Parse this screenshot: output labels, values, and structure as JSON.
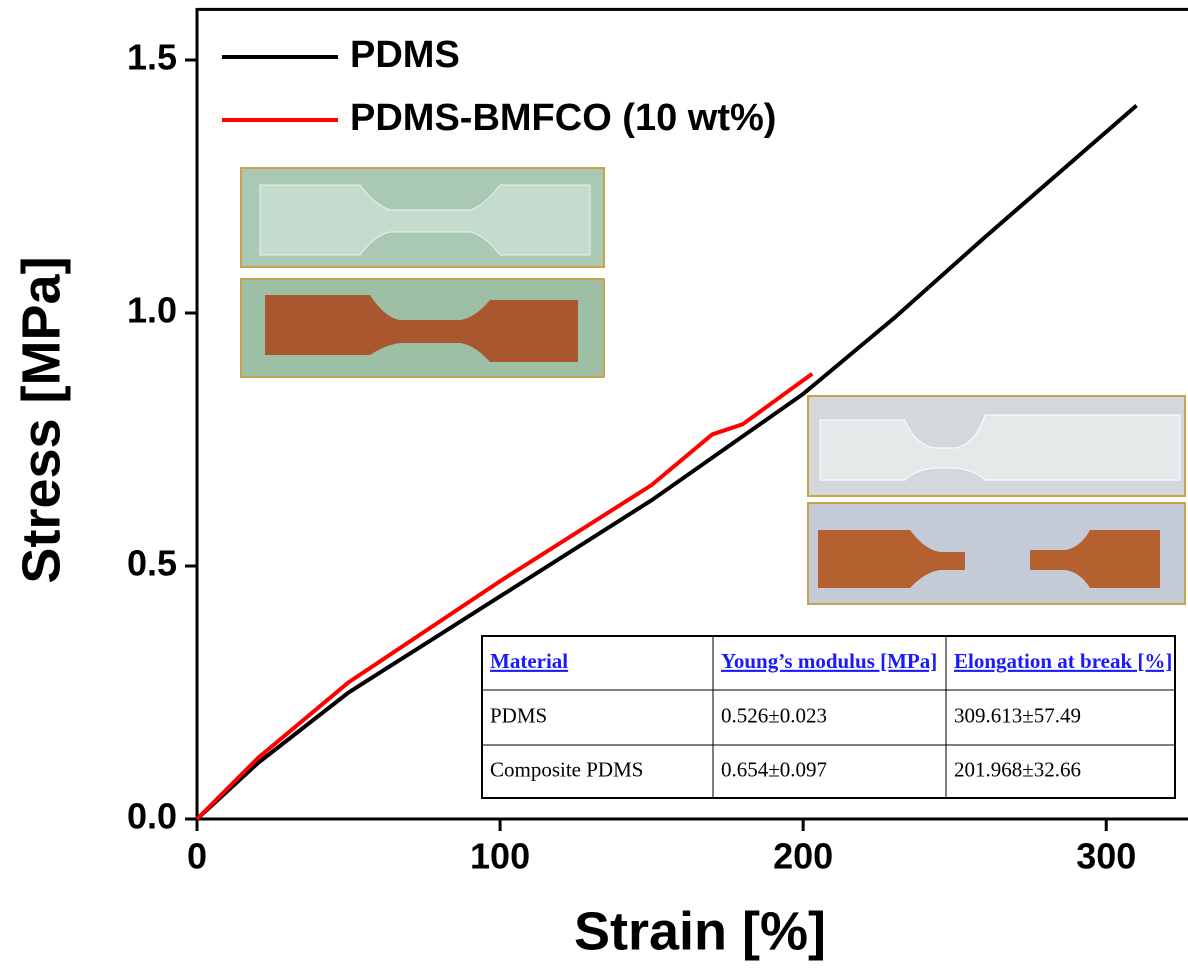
{
  "chart_data": {
    "type": "line",
    "xlabel": "Strain [%]",
    "ylabel": "Stress [MPa]",
    "xlim": [
      0,
      325
    ],
    "ylim": [
      0,
      1.6
    ],
    "xticks": [
      0,
      100,
      200,
      300
    ],
    "yticks": [
      {
        "value": 0,
        "label": "0.0"
      },
      0.5,
      {
        "value": 1,
        "label": "1.0"
      },
      1.5
    ],
    "legend": "upper-left",
    "series": [
      {
        "name": "PDMS",
        "color": "#000000",
        "x": [
          0,
          20,
          50,
          100,
          150,
          200,
          220,
          230,
          260,
          310
        ],
        "values": [
          0,
          0.11,
          0.25,
          0.44,
          0.63,
          0.84,
          0.94,
          0.99,
          1.15,
          1.41
        ]
      },
      {
        "name": "PDMS-BMFCO (10 wt%)",
        "color": "#ff0000",
        "x": [
          0,
          20,
          50,
          100,
          150,
          170,
          180,
          203
        ],
        "values": [
          0,
          0.12,
          0.27,
          0.47,
          0.66,
          0.76,
          0.78,
          0.88
        ]
      }
    ],
    "table": {
      "header": [
        "Material",
        "Young’s modulus [MPa]",
        "Elongation at break [%]"
      ],
      "rows": [
        [
          "PDMS",
          "0.526±0.023",
          "309.613±57.49"
        ],
        [
          "Composite PDMS",
          "0.654±0.097",
          "201.968±32.66"
        ]
      ]
    }
  }
}
